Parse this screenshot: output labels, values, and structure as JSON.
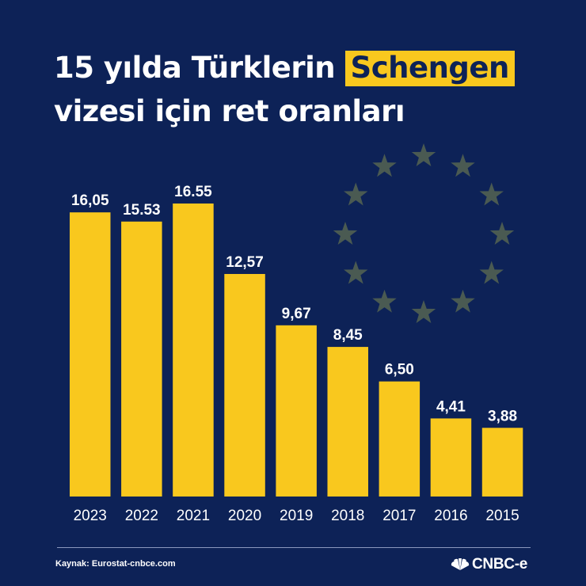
{
  "title": {
    "line1_prefix": "15 yılda Türklerin",
    "line1_highlight": "Schengen",
    "line2": "vizesi için ret oranları"
  },
  "source": "Kaynak: Eurostat-cnbce.com",
  "brand": {
    "logo_text": "CNBC-e",
    "icon": "peacock-icon"
  },
  "colors": {
    "background": "#0d2257",
    "bar": "#f9c81e",
    "highlight": "#f9c81e",
    "stars": "#4a5a52",
    "text": "#ffffff"
  },
  "decoration": {
    "icon": "eu-stars-circle-icon",
    "star_count": 12
  },
  "chart_data": {
    "type": "bar",
    "categories": [
      "2023",
      "2022",
      "2021",
      "2020",
      "2019",
      "2018",
      "2017",
      "2016",
      "2015"
    ],
    "values": [
      16.05,
      15.53,
      16.55,
      12.57,
      9.67,
      8.45,
      6.5,
      4.41,
      3.88
    ],
    "data_labels": [
      "16,05",
      "15.53",
      "16.55",
      "12,57",
      "9,67",
      "8,45",
      "6,50",
      "4,41",
      "3,88"
    ],
    "title": "",
    "xlabel": "",
    "ylabel": "",
    "ylim": [
      0,
      17.5
    ],
    "grid": false,
    "legend": "none"
  }
}
